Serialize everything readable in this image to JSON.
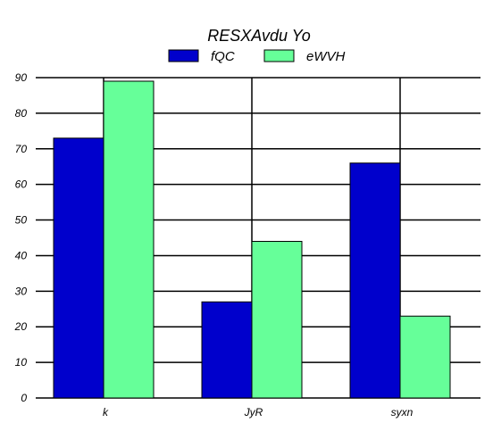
{
  "chart_data": {
    "type": "bar",
    "title": "RESXAvdu Yo",
    "categories": [
      "k",
      "JyR",
      "syxn"
    ],
    "series": [
      {
        "name": "fQC",
        "values": [
          73,
          27,
          66
        ],
        "color": "#0000cc"
      },
      {
        "name": "eWVH",
        "values": [
          89,
          44,
          23
        ],
        "color": "#66ff99"
      }
    ],
    "ylim": [
      0,
      90
    ],
    "yticks": [
      0,
      10,
      20,
      30,
      40,
      50,
      60,
      70,
      80,
      90
    ],
    "xlabel": "",
    "ylabel": "",
    "grid": true,
    "legend": "top-center"
  }
}
